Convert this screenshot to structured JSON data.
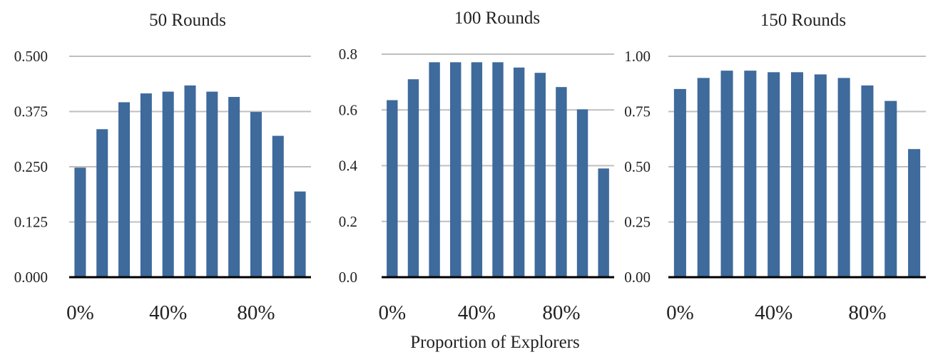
{
  "chart_data": [
    {
      "type": "bar",
      "title": "50 Rounds",
      "x": [
        0,
        10,
        20,
        30,
        40,
        50,
        60,
        70,
        80,
        90,
        100
      ],
      "values": [
        0.248,
        0.335,
        0.396,
        0.416,
        0.42,
        0.434,
        0.42,
        0.408,
        0.374,
        0.32,
        0.194
      ],
      "ylim": [
        0,
        0.5
      ],
      "yticks": [
        "0.000",
        "0.125",
        "0.250",
        "0.375",
        "0.500"
      ],
      "xticks": [
        "0%",
        "40%",
        "80%"
      ],
      "xtick_values": [
        0,
        40,
        80
      ],
      "grid": true,
      "bar_color": "#3E6A9C"
    },
    {
      "type": "bar",
      "title": "100 Rounds",
      "x": [
        0,
        10,
        20,
        30,
        40,
        50,
        60,
        70,
        80,
        90,
        100
      ],
      "values": [
        0.635,
        0.71,
        0.771,
        0.771,
        0.771,
        0.771,
        0.752,
        0.733,
        0.682,
        0.602,
        0.39
      ],
      "ylim": [
        0,
        0.8
      ],
      "yticks": [
        "0.0",
        "0.2",
        "0.4",
        "0.6",
        "0.8"
      ],
      "xticks": [
        "0%",
        "40%",
        "80%"
      ],
      "xtick_values": [
        0,
        40,
        80
      ],
      "grid": true,
      "bar_color": "#3E6A9C"
    },
    {
      "type": "bar",
      "title": "150 Rounds",
      "x": [
        0,
        10,
        20,
        30,
        40,
        50,
        60,
        70,
        80,
        90,
        100
      ],
      "values": [
        0.852,
        0.902,
        0.935,
        0.935,
        0.928,
        0.928,
        0.918,
        0.902,
        0.868,
        0.798,
        0.58
      ],
      "ylim": [
        0,
        1.0
      ],
      "yticks": [
        "0.00",
        "0.25",
        "0.50",
        "0.75",
        "1.00"
      ],
      "xticks": [
        "0%",
        "40%",
        "80%"
      ],
      "xtick_values": [
        0,
        40,
        80
      ],
      "grid": true,
      "bar_color": "#3E6A9C"
    }
  ],
  "figure": {
    "xlabel": "Proportion of Explorers"
  }
}
